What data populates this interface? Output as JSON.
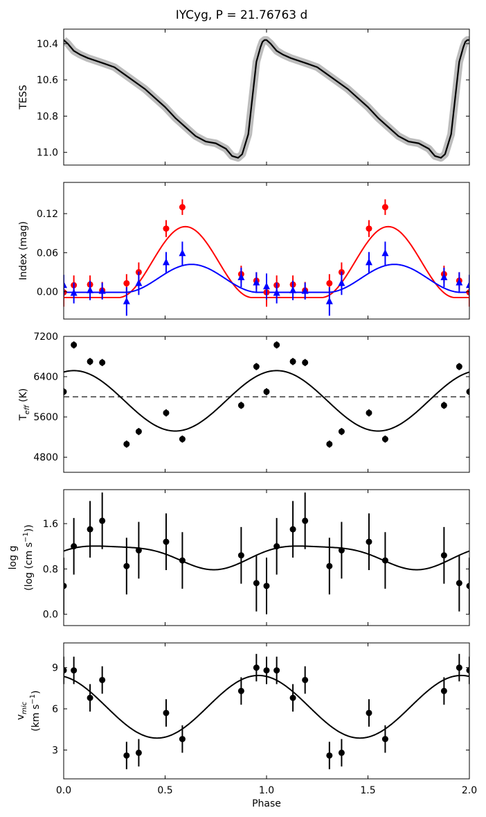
{
  "title": "IYCyg, P = 21.76763 d",
  "xlabel": "Phase",
  "x_ticks": [
    "0.0",
    "0.5",
    "1.0",
    "1.5",
    "2.0"
  ],
  "chart_data": [
    {
      "type": "line",
      "ylabel": "TESS",
      "xlim": [
        0,
        2
      ],
      "ylim": [
        11.07,
        10.32
      ],
      "y_inverted": true,
      "yticks": [
        10.4,
        10.6,
        10.8,
        11.0
      ],
      "ytick_labels": [
        "10.4",
        "10.6",
        "10.8",
        "11.0"
      ],
      "series": [
        {
          "role": "model",
          "color": "#000000",
          "band_color": "#bdbdbd",
          "x": [
            0.0,
            0.02,
            0.05,
            0.08,
            0.12,
            0.2,
            0.25,
            0.3,
            0.4,
            0.45,
            0.5,
            0.55,
            0.6,
            0.65,
            0.7,
            0.75,
            0.8,
            0.83,
            0.86,
            0.88,
            0.91,
            0.93,
            0.95,
            0.97,
            0.98,
            0.99,
            1.0,
            1.02,
            1.05,
            1.08,
            1.12,
            1.2,
            1.25,
            1.3,
            1.4,
            1.45,
            1.5,
            1.55,
            1.6,
            1.65,
            1.7,
            1.75,
            1.8,
            1.83,
            1.86,
            1.88,
            1.91,
            1.93,
            1.95,
            1.97,
            1.98,
            1.99,
            2.0
          ],
          "y": [
            10.38,
            10.4,
            10.44,
            10.46,
            10.48,
            10.51,
            10.53,
            10.57,
            10.65,
            10.7,
            10.75,
            10.81,
            10.86,
            10.91,
            10.94,
            10.95,
            10.98,
            11.02,
            11.03,
            11.01,
            10.9,
            10.7,
            10.5,
            10.42,
            10.39,
            10.38,
            10.38,
            10.4,
            10.44,
            10.46,
            10.48,
            10.51,
            10.53,
            10.57,
            10.65,
            10.7,
            10.75,
            10.81,
            10.86,
            10.91,
            10.94,
            10.95,
            10.98,
            11.02,
            11.03,
            11.01,
            10.9,
            10.7,
            10.5,
            10.42,
            10.39,
            10.38,
            10.38
          ]
        }
      ]
    },
    {
      "type": "scatter",
      "ylabel": "Index (mag)",
      "xlim": [
        0,
        2
      ],
      "ylim": [
        -0.042,
        0.168
      ],
      "yticks": [
        0.0,
        0.06,
        0.12
      ],
      "ytick_labels": [
        "0.00",
        "0.06",
        "0.12"
      ],
      "series": [
        {
          "marker": "circle",
          "color": "#ff0000",
          "x": [
            0.0,
            0.05,
            0.13,
            0.19,
            0.31,
            0.37,
            0.505,
            0.585,
            0.875,
            0.95,
            1.0,
            1.05,
            1.13,
            1.19,
            1.31,
            1.37,
            1.505,
            1.585,
            1.875,
            1.95,
            2.0
          ],
          "y": [
            -0.001,
            0.01,
            0.011,
            0.002,
            0.013,
            0.03,
            0.097,
            0.13,
            0.027,
            0.017,
            -0.001,
            0.01,
            0.011,
            0.002,
            0.013,
            0.03,
            0.097,
            0.13,
            0.027,
            0.017,
            -0.001
          ],
          "yerr": [
            0.022,
            0.015,
            0.014,
            0.013,
            0.014,
            0.015,
            0.013,
            0.012,
            0.013,
            0.013,
            0.022,
            0.015,
            0.014,
            0.013,
            0.014,
            0.015,
            0.013,
            0.012,
            0.013,
            0.013,
            0.022
          ]
        },
        {
          "marker": "triangle",
          "color": "#0000ff",
          "x": [
            0.0,
            0.05,
            0.13,
            0.19,
            0.31,
            0.37,
            0.505,
            0.585,
            0.875,
            0.95,
            1.0,
            1.05,
            1.13,
            1.19,
            1.31,
            1.37,
            1.505,
            1.585,
            1.875,
            1.95,
            2.0
          ],
          "y": [
            0.01,
            -0.002,
            0.002,
            0.001,
            -0.015,
            0.013,
            0.045,
            0.059,
            0.022,
            0.014,
            0.008,
            -0.002,
            0.002,
            0.001,
            -0.015,
            0.013,
            0.045,
            0.059,
            0.022,
            0.014,
            0.01
          ],
          "yerr": [
            0.016,
            0.016,
            0.015,
            0.013,
            0.022,
            0.018,
            0.016,
            0.018,
            0.015,
            0.016,
            0.02,
            0.016,
            0.015,
            0.013,
            0.022,
            0.018,
            0.016,
            0.018,
            0.015,
            0.016,
            0.016
          ]
        }
      ],
      "fits": [
        {
          "color": "#ff0000",
          "mean": 0.0455,
          "amplitude": 0.0545,
          "peak_phase": 0.6,
          "width": 0.66
        },
        {
          "color": "#0000ff",
          "mean": 0.0205,
          "amplitude": 0.0215,
          "peak_phase": 0.63,
          "width": 0.66
        }
      ]
    },
    {
      "type": "scatter",
      "ylabel": "T_eff (K)",
      "xlim": [
        0,
        2
      ],
      "ylim": [
        4500,
        7200
      ],
      "yticks": [
        4800,
        5600,
        6400,
        7200
      ],
      "ytick_labels": [
        "4800",
        "5600",
        "6400",
        "7200"
      ],
      "reference_line": {
        "y": 6000,
        "color": "#666666"
      },
      "series": [
        {
          "marker": "circle",
          "color": "#000000",
          "x": [
            0.0,
            0.05,
            0.13,
            0.19,
            0.31,
            0.37,
            0.505,
            0.585,
            0.875,
            0.95,
            1.0,
            1.05,
            1.13,
            1.19,
            1.31,
            1.37,
            1.505,
            1.585,
            1.875,
            1.95,
            2.0
          ],
          "y": [
            6100,
            7030,
            6700,
            6680,
            5060,
            5310,
            5680,
            5160,
            5830,
            6600,
            6100,
            7030,
            6700,
            6680,
            5060,
            5310,
            5680,
            5160,
            5830,
            6600,
            6100
          ],
          "yerr": [
            70,
            70,
            70,
            70,
            70,
            70,
            70,
            70,
            70,
            70,
            70,
            70,
            70,
            70,
            70,
            70,
            70,
            70,
            70,
            70,
            70
          ]
        }
      ],
      "fit": {
        "color": "#000000",
        "mean": 5920,
        "amplitude": 600,
        "peak_phase": 0.05
      }
    },
    {
      "type": "scatter",
      "ylabel_line1": "log g",
      "ylabel_line2": "(log (cm s^-1))",
      "xlim": [
        0,
        2
      ],
      "ylim": [
        -0.2,
        2.2
      ],
      "yticks": [
        0.0,
        0.8,
        1.6
      ],
      "ytick_labels": [
        "0.0",
        "0.8",
        "1.6"
      ],
      "series": [
        {
          "marker": "circle",
          "color": "#000000",
          "x": [
            0.0,
            0.05,
            0.13,
            0.19,
            0.31,
            0.37,
            0.505,
            0.585,
            0.875,
            0.95,
            1.0,
            1.05,
            1.13,
            1.19,
            1.31,
            1.37,
            1.505,
            1.585,
            1.875,
            1.95,
            2.0
          ],
          "y": [
            0.5,
            1.2,
            1.5,
            1.65,
            0.85,
            1.13,
            1.28,
            0.95,
            1.04,
            0.55,
            0.5,
            1.2,
            1.5,
            1.65,
            0.85,
            1.13,
            1.28,
            0.95,
            1.04,
            0.55,
            0.5
          ],
          "yerr": [
            0.5,
            0.5,
            0.5,
            0.5,
            0.5,
            0.5,
            0.5,
            0.5,
            0.5,
            0.5,
            0.5,
            0.5,
            0.5,
            0.5,
            0.5,
            0.5,
            0.5,
            0.5,
            0.5,
            0.5,
            0.5
          ]
        }
      ],
      "fit": {
        "color": "#000000",
        "mean": 1.04,
        "amplitude1": 0.205,
        "peak_phase1": 0.23,
        "amplitude2": 0.05,
        "peak_phase2": 0.5
      }
    },
    {
      "type": "scatter",
      "ylabel_line1": "v_mic",
      "ylabel_line2": "(km s^-1)",
      "xlim": [
        0,
        2
      ],
      "ylim": [
        0.9,
        10.8
      ],
      "yticks": [
        3,
        6,
        9
      ],
      "ytick_labels": [
        "3",
        "6",
        "9"
      ],
      "series": [
        {
          "marker": "circle",
          "color": "#000000",
          "x": [
            0.0,
            0.05,
            0.13,
            0.19,
            0.31,
            0.37,
            0.505,
            0.585,
            0.875,
            0.95,
            1.0,
            1.05,
            1.13,
            1.19,
            1.31,
            1.37,
            1.505,
            1.585,
            1.875,
            1.95,
            2.0
          ],
          "y": [
            8.8,
            8.8,
            6.8,
            8.1,
            2.6,
            2.8,
            5.7,
            3.8,
            7.3,
            9.0,
            8.8,
            8.8,
            6.8,
            8.1,
            2.6,
            2.8,
            5.7,
            3.8,
            7.3,
            9.0,
            8.8
          ],
          "yerr": [
            1.0,
            1.0,
            1.0,
            1.0,
            1.0,
            1.0,
            1.0,
            1.0,
            1.0,
            1.0,
            1.0,
            1.0,
            1.0,
            1.0,
            1.0,
            1.0,
            1.0,
            1.0,
            1.0,
            1.0,
            1.0
          ]
        }
      ],
      "fit": {
        "color": "#000000",
        "mean": 6.15,
        "amplitude": 2.28,
        "peak_phase": 0.96
      }
    }
  ]
}
